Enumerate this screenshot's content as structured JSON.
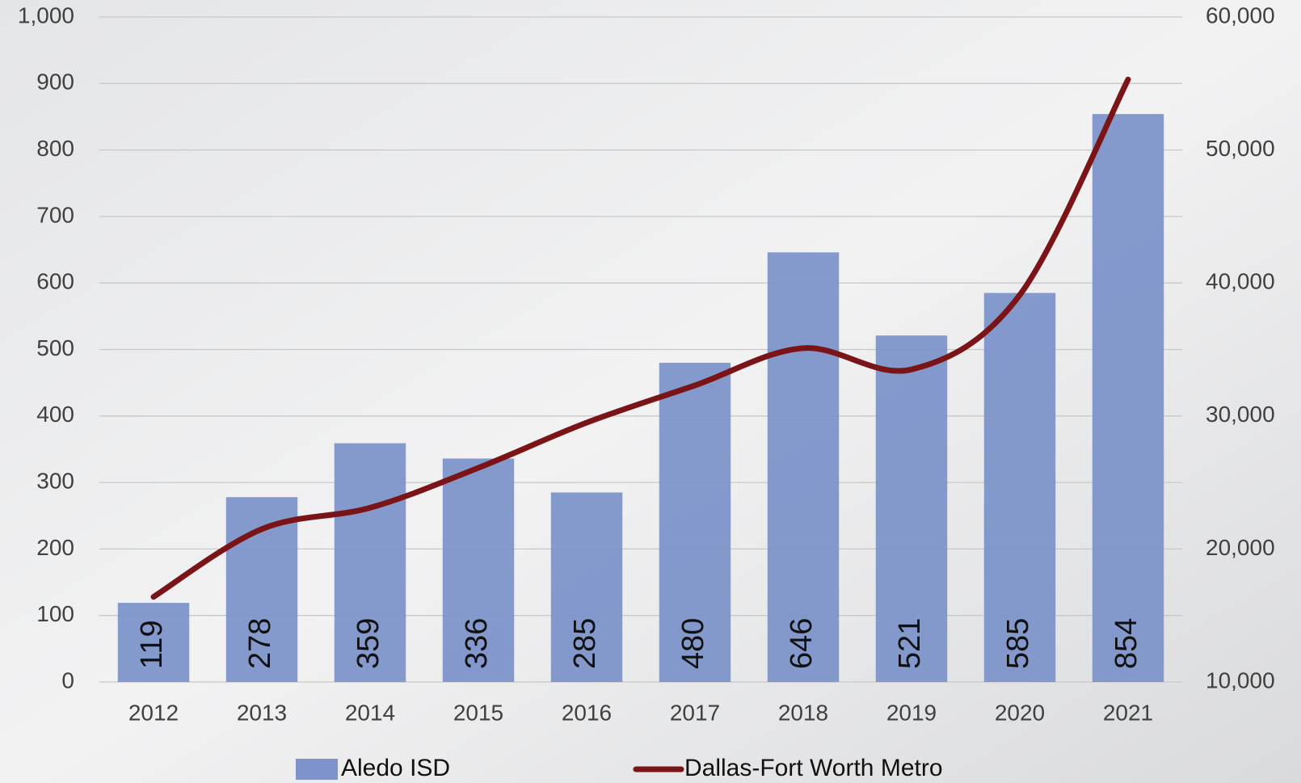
{
  "chart_data": {
    "type": "bar-line",
    "categories": [
      "2012",
      "2013",
      "2014",
      "2015",
      "2016",
      "2017",
      "2018",
      "2019",
      "2020",
      "2021"
    ],
    "series": [
      {
        "name": "Aledo ISD",
        "type": "bar",
        "color": "#7d93c9",
        "values": [
          119,
          278,
          359,
          336,
          285,
          480,
          646,
          521,
          585,
          854
        ]
      },
      {
        "name": "Dallas-Fort Worth Metro",
        "type": "line",
        "axis": "y2",
        "color": "#7b1416",
        "values": [
          16400,
          21500,
          23100,
          26100,
          29500,
          32300,
          35100,
          33500,
          39100,
          55300
        ]
      }
    ],
    "ylim": [
      0,
      1000
    ],
    "yticks": [
      0,
      100,
      200,
      300,
      400,
      500,
      600,
      700,
      800,
      900,
      {
        "value": 1000,
        "label": "1,000"
      }
    ],
    "y2lim": [
      10000,
      60000
    ],
    "y2ticks": [
      {
        "value": 10000,
        "label": "10,000"
      },
      {
        "value": 20000,
        "label": "20,000"
      },
      {
        "value": 30000,
        "label": "30,000"
      },
      {
        "value": 40000,
        "label": "40,000"
      },
      {
        "value": 50000,
        "label": "50,000"
      },
      {
        "value": 60000,
        "label": "60,000"
      }
    ],
    "grid": true,
    "legend": "bottom"
  }
}
